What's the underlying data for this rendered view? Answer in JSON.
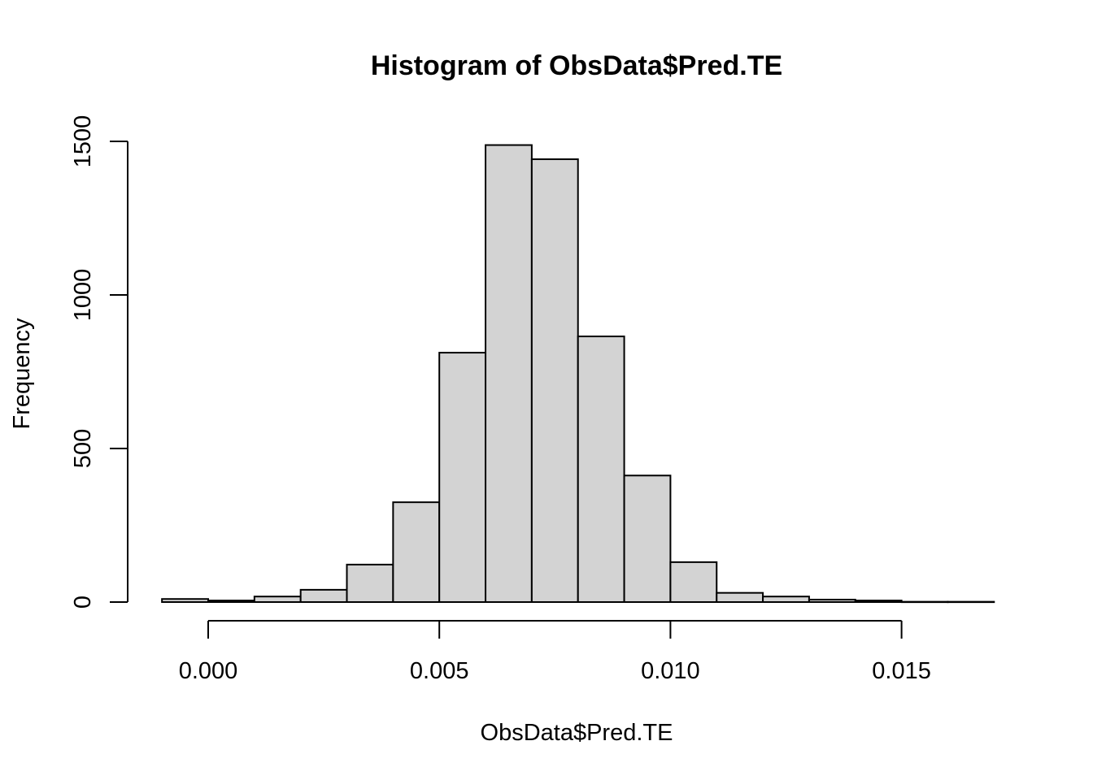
{
  "chart_data": {
    "type": "bar",
    "title": "Histogram of ObsData$Pred.TE",
    "xlabel": "ObsData$Pred.TE",
    "ylabel": "Frequency",
    "bin_edges": [
      -0.001,
      0.0,
      0.001,
      0.002,
      0.003,
      0.004,
      0.005,
      0.006,
      0.007,
      0.008,
      0.009,
      0.01,
      0.011,
      0.012,
      0.013,
      0.014,
      0.015,
      0.016,
      0.017
    ],
    "values": [
      10,
      5,
      18,
      40,
      122,
      325,
      812,
      1488,
      1442,
      865,
      412,
      130,
      30,
      18,
      8,
      5,
      1,
      1
    ],
    "xticks": [
      0.0,
      0.005,
      0.01,
      0.015
    ],
    "xtick_labels": [
      "0.000",
      "0.005",
      "0.010",
      "0.015"
    ],
    "yticks": [
      0,
      500,
      1000,
      1500
    ],
    "ytick_labels": [
      "0",
      "500",
      "1000",
      "1500"
    ],
    "xlim": [
      -0.001,
      0.017
    ],
    "ylim": [
      0,
      1500
    ],
    "bar_fill": "#d3d3d3",
    "bar_stroke": "#000000",
    "grid": false,
    "legend": "none"
  }
}
